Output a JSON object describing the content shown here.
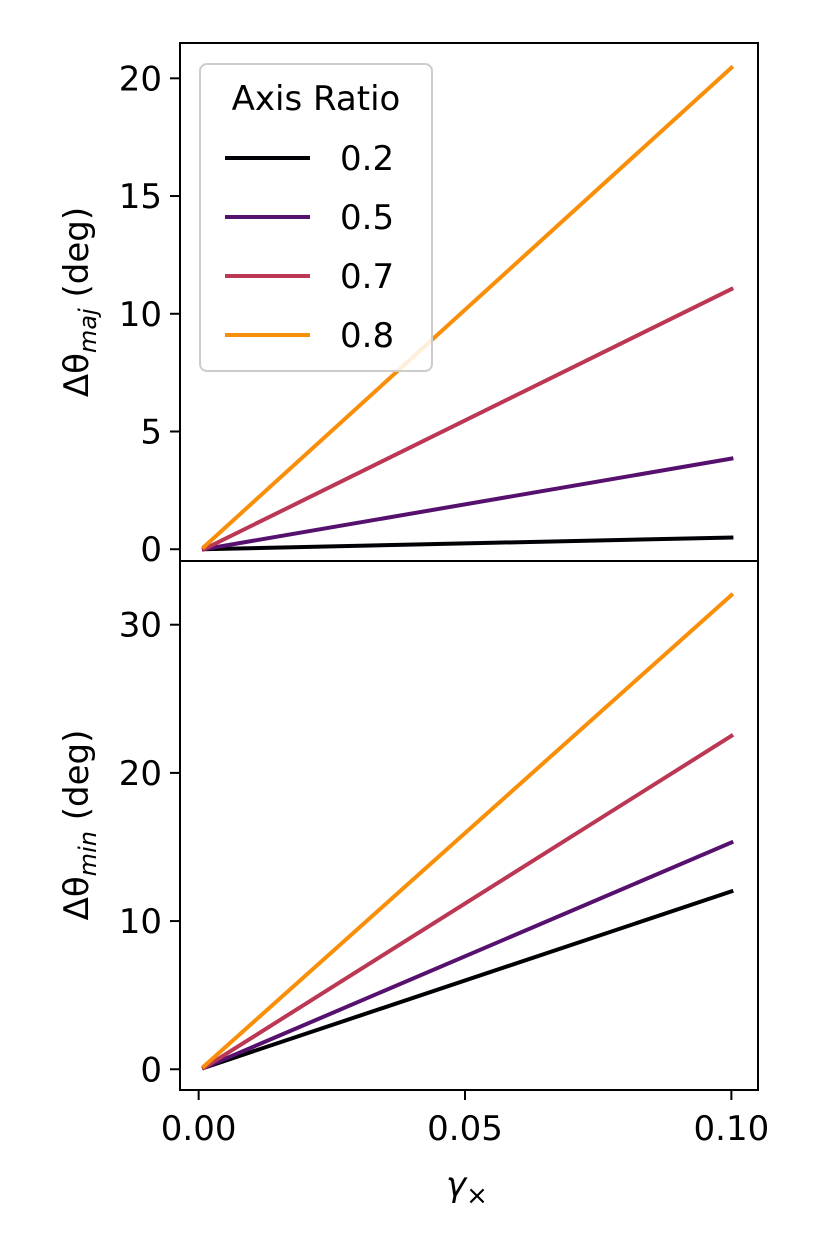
{
  "chart_data": [
    {
      "type": "line",
      "panel": "top",
      "ylabel_symbol": "Δθ",
      "ylabel_subscript": "maj",
      "ylabel_unit": " (deg)",
      "xlim": [
        -0.0035,
        0.105
      ],
      "ylim": [
        -0.5,
        21.5
      ],
      "xticks": [
        0.0,
        0.05,
        0.1
      ],
      "yticks": [
        0,
        5,
        10,
        15,
        20
      ],
      "ytick_labels": [
        "0",
        "5",
        "10",
        "15",
        "20"
      ],
      "x": [
        0.001,
        0.1
      ],
      "series": [
        {
          "name": "0.2",
          "color": "#000004",
          "values": [
            0.0,
            0.5
          ]
        },
        {
          "name": "0.5",
          "color": "#56106e",
          "values": [
            0.0,
            3.85
          ]
        },
        {
          "name": "0.7",
          "color": "#bb3754",
          "values": [
            0.0,
            11.05
          ]
        },
        {
          "name": "0.8",
          "color": "#f98e09",
          "values": [
            0.1,
            20.45
          ]
        }
      ],
      "legend": {
        "title": "Axis Ratio",
        "placement": "upper-left"
      }
    },
    {
      "type": "line",
      "panel": "bottom",
      "ylabel_symbol": "Δθ",
      "ylabel_subscript": "min",
      "ylabel_unit": " (deg)",
      "xlabel_symbol": "γ",
      "xlabel_subscript": "×",
      "xlim": [
        -0.0035,
        0.105
      ],
      "ylim": [
        -1.4,
        34.3
      ],
      "xticks": [
        0.0,
        0.05,
        0.1
      ],
      "xtick_labels": [
        "0.00",
        "0.05",
        "0.10"
      ],
      "yticks": [
        0,
        10,
        20,
        30
      ],
      "ytick_labels": [
        "0",
        "10",
        "20",
        "30"
      ],
      "x": [
        0.001,
        0.1
      ],
      "series": [
        {
          "name": "0.2",
          "color": "#000004",
          "values": [
            0.1,
            12.0
          ]
        },
        {
          "name": "0.5",
          "color": "#56106e",
          "values": [
            0.1,
            15.3
          ]
        },
        {
          "name": "0.7",
          "color": "#bb3754",
          "values": [
            0.1,
            22.5
          ]
        },
        {
          "name": "0.8",
          "color": "#f98e09",
          "values": [
            0.2,
            32.0
          ]
        }
      ]
    }
  ]
}
